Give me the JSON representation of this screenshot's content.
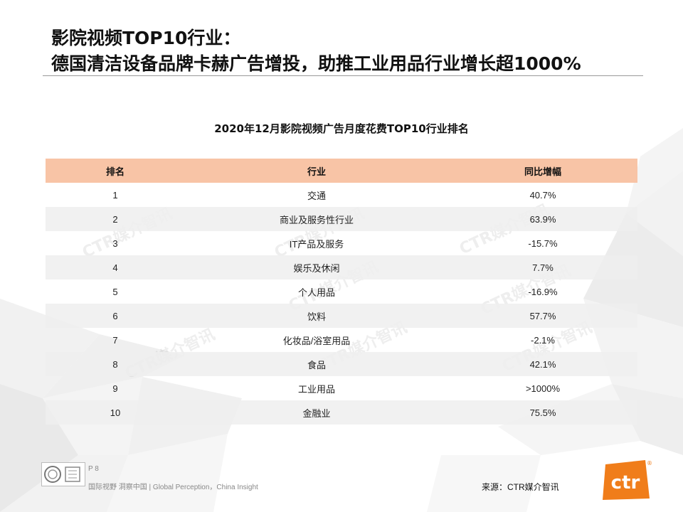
{
  "title": {
    "line1": "影院视频TOP10行业：",
    "line2": "德国清洁设备品牌卡赫广告增投，助推工业用品行业增长超1000%"
  },
  "table": {
    "title": "2020年12月影院视频广告月度花费TOP10行业排名",
    "headers": [
      "排名",
      "行业",
      "同比增幅"
    ],
    "rows": [
      {
        "rank": "1",
        "industry": "交通",
        "growth": "40.7%"
      },
      {
        "rank": "2",
        "industry": "商业及服务性行业",
        "growth": "63.9%"
      },
      {
        "rank": "3",
        "industry": "IT产品及服务",
        "growth": "-15.7%"
      },
      {
        "rank": "4",
        "industry": "娱乐及休闲",
        "growth": "7.7%"
      },
      {
        "rank": "5",
        "industry": "个人用品",
        "growth": "-16.9%"
      },
      {
        "rank": "6",
        "industry": "饮料",
        "growth": "57.7%"
      },
      {
        "rank": "7",
        "industry": "化妆品/浴室用品",
        "growth": "-2.1%"
      },
      {
        "rank": "8",
        "industry": "食品",
        "growth": "42.1%"
      },
      {
        "rank": "9",
        "industry": "工业用品",
        "growth": ">1000%"
      },
      {
        "rank": "10",
        "industry": "金融业",
        "growth": "75.5%"
      }
    ]
  },
  "watermark": {
    "text": "CTR媒介智讯"
  },
  "footer": {
    "page": "P 8",
    "tagline": "国际视野 洞察中国 | Global Perception，China Insight",
    "source": "来源：CTR媒介智讯"
  },
  "logo": {
    "text": "ctr",
    "registered": "®",
    "color": "#f07d1a"
  },
  "colors": {
    "header_bg": "#f8c4a6",
    "alt_row_bg": "#eeeeee",
    "rule": "#9a9a9a"
  }
}
